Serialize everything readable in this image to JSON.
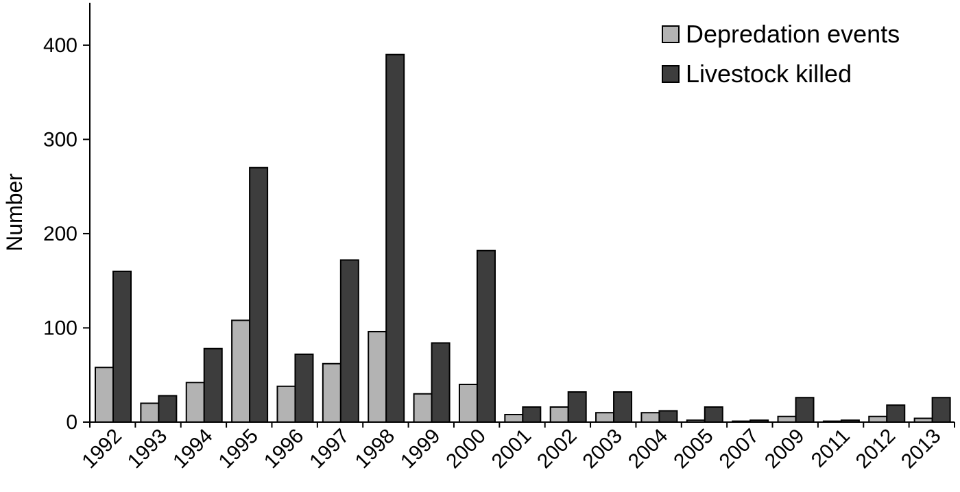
{
  "chart_data": {
    "type": "bar",
    "title": "",
    "xlabel": "",
    "ylabel": "Number",
    "ylim": [
      0,
      445
    ],
    "yticks": [
      0,
      100,
      200,
      300,
      400
    ],
    "grid": false,
    "legend_position": "top-right",
    "categories": [
      "1992",
      "1993",
      "1994",
      "1995",
      "1996",
      "1997",
      "1998",
      "1999",
      "2000",
      "2001",
      "2002",
      "2003",
      "2004",
      "2005",
      "2007",
      "2009",
      "2011",
      "2012",
      "2013"
    ],
    "series": [
      {
        "name": "Depredation events",
        "color": "#b3b3b3",
        "values": [
          58,
          20,
          42,
          108,
          38,
          62,
          96,
          30,
          40,
          8,
          16,
          10,
          10,
          2,
          1,
          6,
          1,
          6,
          4
        ]
      },
      {
        "name": "Livestock killed",
        "color": "#3d3d3d",
        "values": [
          160,
          28,
          78,
          270,
          72,
          172,
          390,
          84,
          182,
          16,
          32,
          32,
          12,
          16,
          2,
          26,
          2,
          18,
          26
        ]
      }
    ]
  }
}
